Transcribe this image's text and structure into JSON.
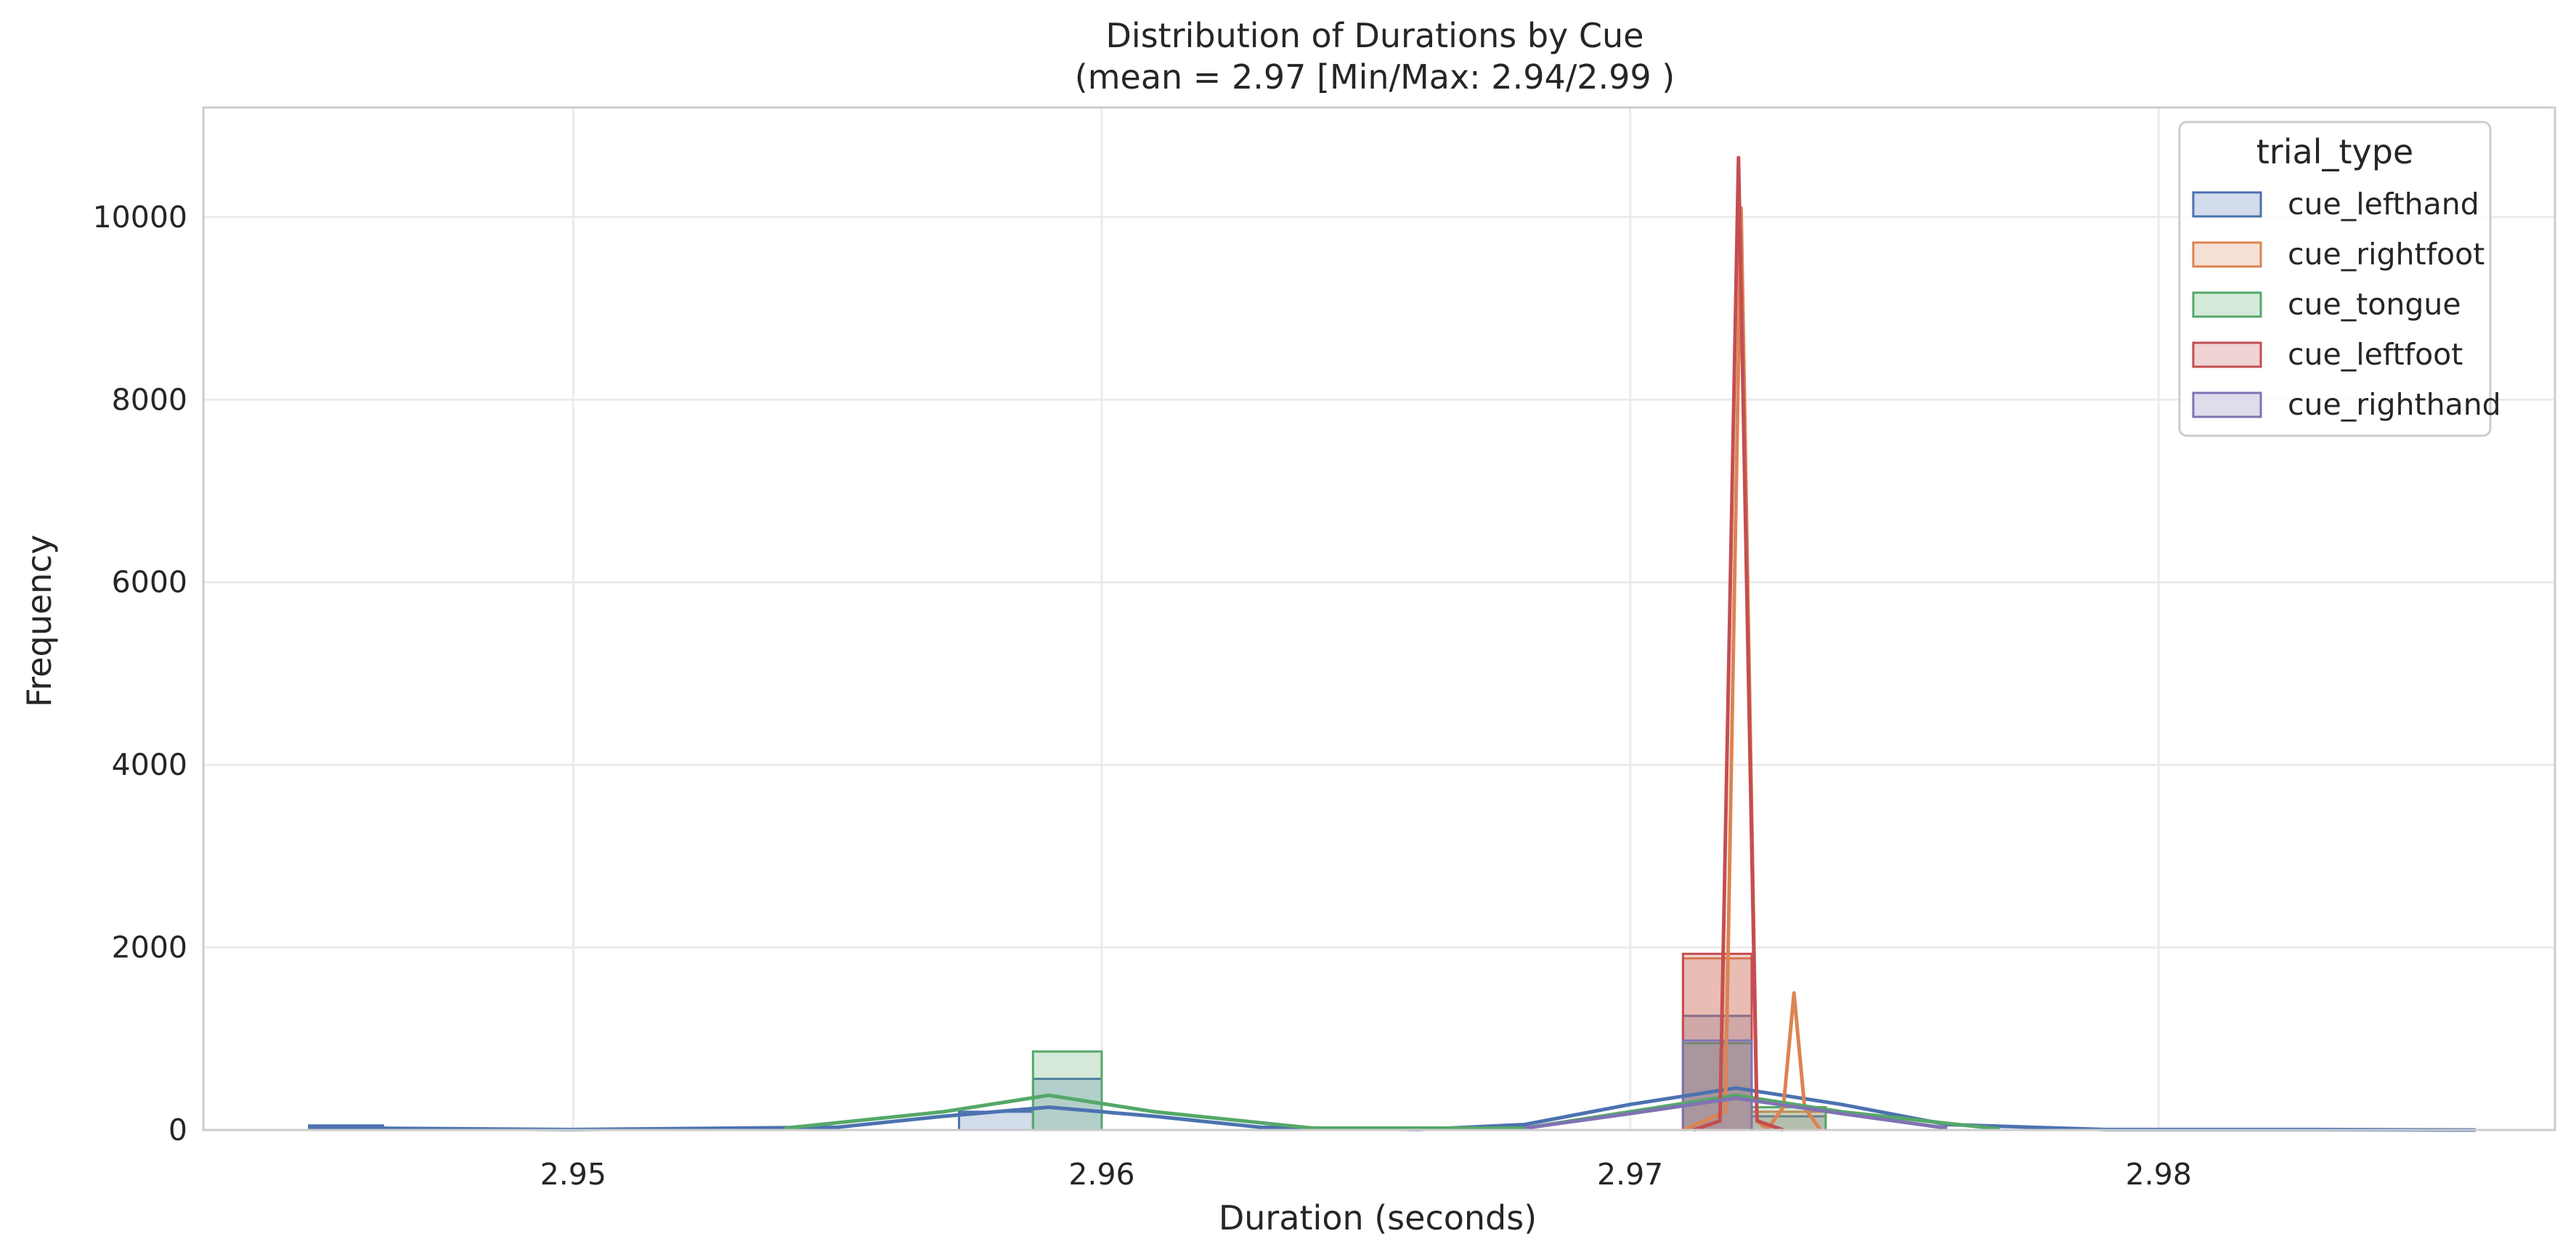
{
  "chart_data": {
    "type": "histogram",
    "title": "Distribution of Durations by Cue",
    "subtitle": "(mean = 2.97 [Min/Max: 2.94/2.99 )",
    "xlabel": "Duration (seconds)",
    "ylabel": "Frequency",
    "xlim": [
      2.943,
      2.9875
    ],
    "ylim": [
      0,
      11200
    ],
    "xticks": [
      2.95,
      2.96,
      2.97,
      2.98
    ],
    "xtick_labels": [
      "2.95",
      "2.96",
      "2.97",
      "2.98"
    ],
    "yticks": [
      0,
      2000,
      4000,
      6000,
      8000,
      10000
    ],
    "ytick_labels": [
      "0",
      "2000",
      "4000",
      "6000",
      "8000",
      "10000"
    ],
    "grid": true,
    "legend": {
      "title": "trial_type",
      "placement": "top-right",
      "entries": [
        "cue_lefthand",
        "cue_rightfoot",
        "cue_tongue",
        "cue_leftfoot",
        "cue_righthand"
      ]
    },
    "series": [
      {
        "name": "cue_lefthand",
        "color": "#4c72b0",
        "bins": [
          {
            "x0": 2.945,
            "x1": 2.9464,
            "count": 50
          },
          {
            "x0": 2.9573,
            "x1": 2.9587,
            "count": 200
          },
          {
            "x0": 2.9587,
            "x1": 2.96,
            "count": 560
          },
          {
            "x0": 2.971,
            "x1": 2.9723,
            "count": 1250
          },
          {
            "x0": 2.9723,
            "x1": 2.9737,
            "count": 150
          }
        ],
        "kde": {
          "x": [
            2.945,
            2.95,
            2.955,
            2.957,
            2.959,
            2.961,
            2.963,
            2.966,
            2.968,
            2.97,
            2.972,
            2.974,
            2.976,
            2.979,
            2.983,
            2.986
          ],
          "y": [
            25,
            5,
            30,
            150,
            250,
            150,
            30,
            5,
            60,
            280,
            460,
            280,
            60,
            5,
            5,
            0
          ]
        }
      },
      {
        "name": "cue_rightfoot",
        "color": "#dd8452",
        "bins": [
          {
            "x0": 2.971,
            "x1": 2.9723,
            "count": 1880
          },
          {
            "x0": 2.9723,
            "x1": 2.9737,
            "count": 200
          }
        ],
        "kde": {
          "x": [
            2.971,
            2.9718,
            2.9721,
            2.9724,
            2.9726,
            2.9729,
            2.9731,
            2.9733,
            2.9736
          ],
          "y": [
            0,
            200,
            10100,
            100,
            10,
            250,
            1500,
            250,
            0
          ]
        }
      },
      {
        "name": "cue_tongue",
        "color": "#55a868",
        "bins": [
          {
            "x0": 2.9587,
            "x1": 2.96,
            "count": 860
          },
          {
            "x0": 2.971,
            "x1": 2.9723,
            "count": 950
          },
          {
            "x0": 2.9723,
            "x1": 2.9737,
            "count": 250
          }
        ],
        "kde": {
          "x": [
            2.954,
            2.957,
            2.959,
            2.961,
            2.964,
            2.968,
            2.97,
            2.972,
            2.974,
            2.977
          ],
          "y": [
            20,
            200,
            380,
            200,
            20,
            20,
            200,
            380,
            200,
            10
          ]
        }
      },
      {
        "name": "cue_leftfoot",
        "color": "#c44e52",
        "bins": [
          {
            "x0": 2.971,
            "x1": 2.9723,
            "count": 1930
          }
        ],
        "kde": {
          "x": [
            2.9712,
            2.9717,
            2.97205,
            2.9724,
            2.9729
          ],
          "y": [
            0,
            100,
            10650,
            100,
            0
          ]
        }
      },
      {
        "name": "cue_righthand",
        "color": "#8172b3",
        "bins": [
          {
            "x0": 2.971,
            "x1": 2.9723,
            "count": 980
          }
        ],
        "kde": {
          "x": [
            2.968,
            2.97,
            2.972,
            2.974,
            2.976
          ],
          "y": [
            20,
            180,
            350,
            180,
            20
          ]
        }
      }
    ]
  }
}
